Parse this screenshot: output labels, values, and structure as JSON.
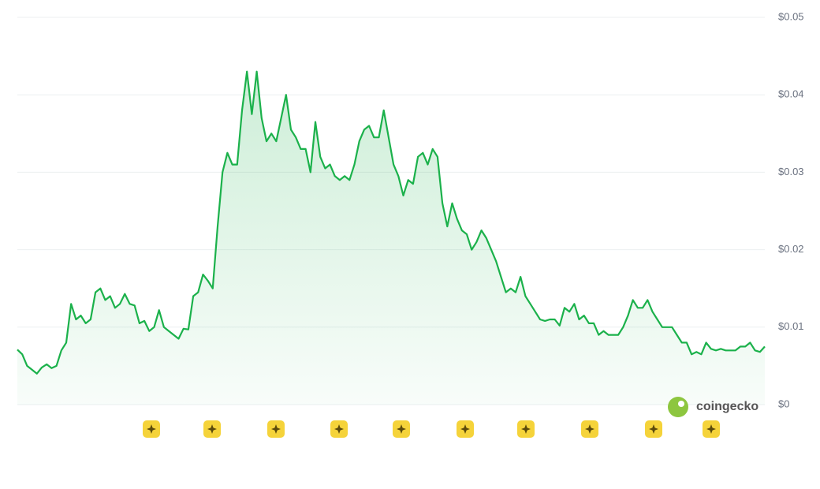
{
  "chart_data": {
    "type": "line",
    "watermark": "coingecko",
    "color": "#1bb14b",
    "grid": true,
    "ylim": [
      0,
      0.05
    ],
    "yticks": [
      {
        "value": 0,
        "label": "$0"
      },
      {
        "value": 0.01,
        "label": "$0.01"
      },
      {
        "value": 0.02,
        "label": "$0.02"
      },
      {
        "value": 0.03,
        "label": "$0.03"
      },
      {
        "value": 0.04,
        "label": "$0.04"
      },
      {
        "value": 0.05,
        "label": "$0.05"
      }
    ],
    "values": [
      0.0071,
      0.0065,
      0.005,
      0.0045,
      0.004,
      0.0048,
      0.0052,
      0.0047,
      0.005,
      0.007,
      0.008,
      0.013,
      0.011,
      0.0115,
      0.0105,
      0.011,
      0.0145,
      0.015,
      0.0135,
      0.014,
      0.0125,
      0.013,
      0.0143,
      0.013,
      0.0128,
      0.0105,
      0.0108,
      0.0095,
      0.01,
      0.0122,
      0.01,
      0.0095,
      0.009,
      0.0085,
      0.0098,
      0.0097,
      0.014,
      0.0145,
      0.0168,
      0.016,
      0.015,
      0.023,
      0.03,
      0.0325,
      0.031,
      0.031,
      0.038,
      0.043,
      0.0375,
      0.043,
      0.037,
      0.034,
      0.035,
      0.034,
      0.037,
      0.04,
      0.0355,
      0.0345,
      0.033,
      0.033,
      0.03,
      0.0365,
      0.032,
      0.0305,
      0.031,
      0.0295,
      0.029,
      0.0295,
      0.029,
      0.031,
      0.034,
      0.0355,
      0.036,
      0.0345,
      0.0345,
      0.038,
      0.0345,
      0.031,
      0.0295,
      0.027,
      0.029,
      0.0285,
      0.032,
      0.0325,
      0.031,
      0.033,
      0.032,
      0.026,
      0.023,
      0.026,
      0.024,
      0.0225,
      0.022,
      0.02,
      0.021,
      0.0225,
      0.0215,
      0.02,
      0.0185,
      0.0165,
      0.0145,
      0.015,
      0.0145,
      0.0165,
      0.014,
      0.013,
      0.012,
      0.011,
      0.0108,
      0.011,
      0.011,
      0.0102,
      0.0125,
      0.012,
      0.013,
      0.011,
      0.0115,
      0.0105,
      0.0105,
      0.009,
      0.0095,
      0.009,
      0.009,
      0.009,
      0.01,
      0.0115,
      0.0135,
      0.0125,
      0.0125,
      0.0135,
      0.012,
      0.011,
      0.01,
      0.01,
      0.01,
      0.009,
      0.008,
      0.008,
      0.0065,
      0.0068,
      0.0065,
      0.008,
      0.0072,
      0.007,
      0.0072,
      0.007,
      0.007,
      0.007,
      0.0075,
      0.0075,
      0.008,
      0.007,
      0.0068,
      0.0075
    ]
  }
}
